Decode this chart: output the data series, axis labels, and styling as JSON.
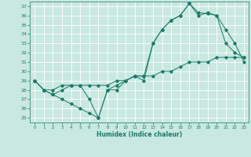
{
  "xlabel": "Humidex (Indice chaleur)",
  "bg_color": "#c8e8e0",
  "grid_color": "#ffffff",
  "line_color": "#1a7a6a",
  "xlim": [
    -0.5,
    23.5
  ],
  "ylim": [
    24.5,
    37.5
  ],
  "xticks": [
    0,
    1,
    2,
    3,
    4,
    5,
    6,
    7,
    8,
    9,
    10,
    11,
    12,
    13,
    14,
    15,
    16,
    17,
    18,
    19,
    20,
    21,
    22,
    23
  ],
  "yticks": [
    25,
    26,
    27,
    28,
    29,
    30,
    31,
    32,
    33,
    34,
    35,
    36,
    37
  ],
  "line1_x": [
    0,
    1,
    2,
    3,
    4,
    5,
    6,
    7,
    8,
    9,
    10,
    11,
    12,
    13,
    14,
    15,
    16,
    17,
    18,
    19,
    20,
    21,
    22,
    23
  ],
  "line1_y": [
    29.0,
    28.0,
    27.5,
    27.0,
    26.5,
    26.0,
    25.5,
    25.0,
    28.0,
    28.0,
    29.0,
    29.5,
    29.0,
    33.0,
    34.5,
    35.5,
    36.0,
    37.3,
    36.3,
    36.2,
    36.0,
    33.0,
    32.0,
    31.5
  ],
  "line2_x": [
    0,
    1,
    2,
    3,
    4,
    5,
    6,
    7,
    8,
    9,
    10,
    11,
    12,
    13,
    14,
    15,
    16,
    17,
    18,
    19,
    20,
    21,
    22,
    23
  ],
  "line2_y": [
    29.0,
    28.0,
    27.5,
    28.0,
    28.5,
    28.5,
    27.0,
    25.0,
    28.0,
    28.5,
    29.0,
    29.5,
    29.5,
    33.0,
    34.5,
    35.5,
    36.0,
    37.3,
    36.0,
    36.3,
    36.0,
    34.5,
    33.0,
    31.0
  ],
  "line3_x": [
    0,
    1,
    2,
    3,
    4,
    5,
    6,
    7,
    8,
    9,
    10,
    11,
    12,
    13,
    14,
    15,
    16,
    17,
    18,
    19,
    20,
    21,
    22,
    23
  ],
  "line3_y": [
    29.0,
    28.0,
    28.0,
    28.5,
    28.5,
    28.5,
    28.5,
    28.5,
    28.5,
    29.0,
    29.0,
    29.5,
    29.5,
    29.5,
    30.0,
    30.0,
    30.5,
    31.0,
    31.0,
    31.0,
    31.5,
    31.5,
    31.5,
    31.5
  ]
}
